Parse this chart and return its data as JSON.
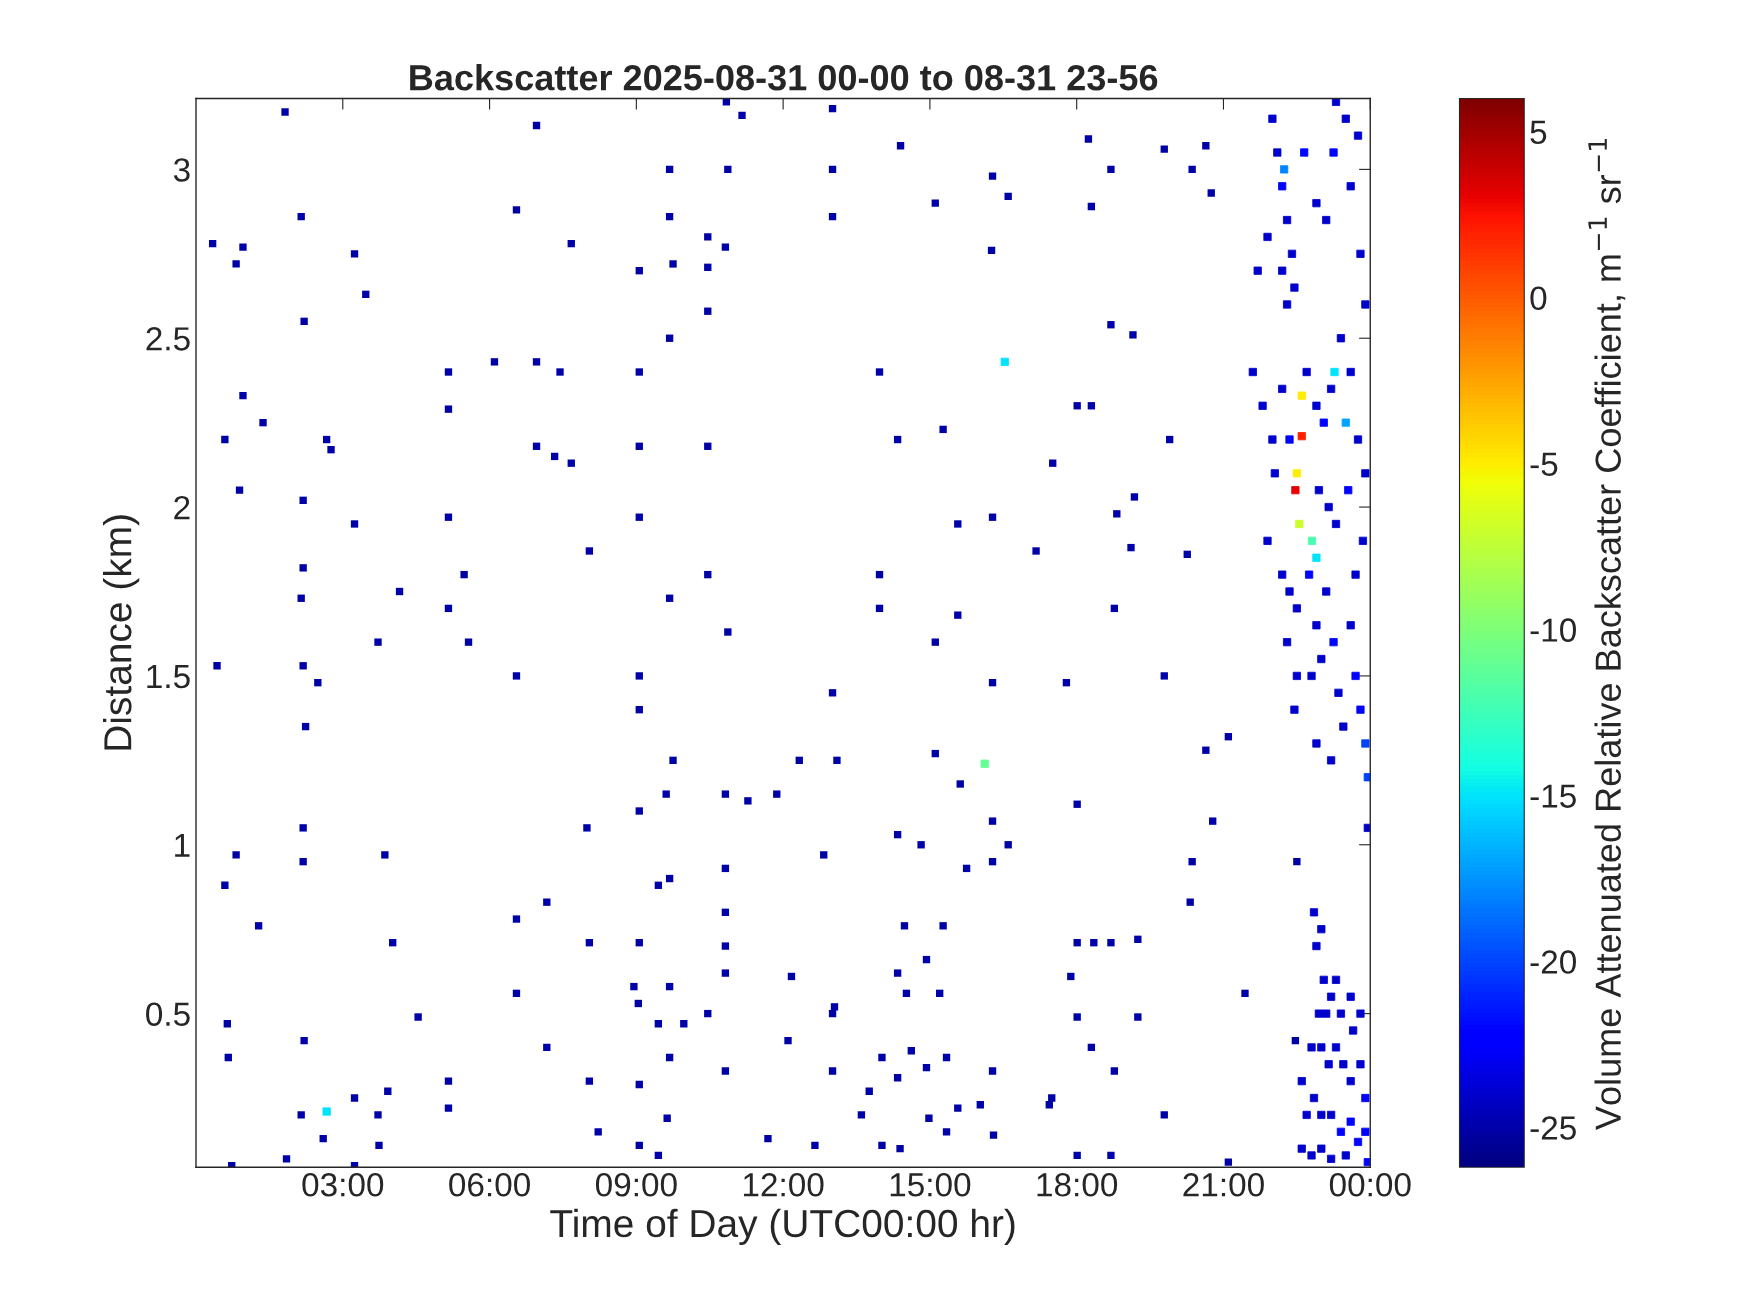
{
  "chart_data": {
    "type": "scatter",
    "title": "Backscatter 2025-08-31 00-00 to 08-31 23-56",
    "xlabel": "Time of Day (UTC00:00 hr)",
    "ylabel": "Distance (km)",
    "clabel": "Volume Attenuated Relative Backscatter Coefficient, m$^{−1}$ sr$^{−1}$",
    "marker": "square",
    "grid": false,
    "legend": false,
    "xlim": [
      0,
      24
    ],
    "xticks": [
      {
        "value": 3,
        "label": "03:00"
      },
      {
        "value": 6,
        "label": "06:00"
      },
      {
        "value": 9,
        "label": "09:00"
      },
      {
        "value": 12,
        "label": "12:00"
      },
      {
        "value": 15,
        "label": "15:00"
      },
      {
        "value": 18,
        "label": "18:00"
      },
      {
        "value": 21,
        "label": "21:00"
      },
      {
        "value": 24,
        "label": "00:00"
      }
    ],
    "ylim": [
      0.045,
      3.21
    ],
    "yticks": [
      0.5,
      1,
      1.5,
      2,
      2.5,
      3
    ],
    "clim": [
      -26.2,
      6
    ],
    "cticks": [
      -25,
      -20,
      -15,
      -10,
      -5,
      0,
      5
    ],
    "series": [
      {
        "x": [
          1.82,
          2.15,
          0.34,
          0.82,
          0.96,
          3.24,
          3.47,
          2.21,
          6.55,
          6.96,
          7.67,
          9.68,
          9.68,
          10.87,
          10.84,
          11.16,
          13.01,
          13.01,
          13.01,
          14.4,
          15.11,
          16.28,
          16.6,
          16.26,
          18.24,
          18.3,
          18.7,
          19.79,
          20.36,
          20.64,
          20.75,
          10.46,
          10.46,
          9.75,
          9.06,
          10.82,
          10.46,
          9.68,
          5.16,
          6.1,
          6.96,
          7.44,
          9.06,
          5.16,
          0.96,
          0.59,
          1.37,
          2.67,
          2.76,
          6.96,
          7.33,
          7.67,
          9.06,
          10.46,
          13.97,
          14.34,
          15.27,
          17.51,
          18.01,
          18.3,
          18.7,
          19.15,
          19.9,
          19.18,
          18.82,
          0.89,
          2.19,
          3.24,
          5.16,
          9.06,
          15.57,
          16.28,
          17.17,
          19.11,
          20.26,
          8.04,
          2.19,
          2.15,
          4.16,
          5.48,
          5.16,
          5.57,
          3.72,
          6.55,
          9.68,
          10.46,
          10.87,
          13.97,
          13.97,
          15.57,
          15.11,
          18.77,
          17.79,
          19.79,
          0.43,
          2.19,
          2.49,
          2.24,
          9.06,
          9.06,
          13.01,
          16.28,
          9.75,
          15.11,
          15.62,
          12.33,
          13.1,
          11.87,
          11.28,
          10.82,
          9.61,
          9.06,
          18.01,
          21.1,
          20.64,
          2.19,
          7.99,
          14.34,
          14.82,
          16.28,
          16.6,
          20.78,
          0.82,
          2.19,
          3.86,
          10.82,
          12.83,
          16.28,
          15.75,
          20.36,
          22.5,
          0.59,
          9.68,
          9.45,
          20.32,
          7.17,
          1.28,
          6.55,
          10.82,
          10.82,
          8.04,
          4.02,
          9.06,
          14.48,
          15.27,
          18.01,
          18.7,
          19.25,
          18.35,
          14.93,
          14.34,
          10.82,
          12.17,
          9.68,
          6.55,
          8.95,
          17.88,
          15.2,
          14.52,
          21.44,
          9.04,
          10.46,
          13.05,
          13.01,
          4.54,
          0.64,
          9.45,
          9.97,
          18.01,
          19.25,
          2.21,
          12.1,
          14.62,
          7.17,
          9.68,
          10.82,
          13.01,
          14.02,
          15.34,
          14.93,
          16.28,
          18.3,
          18.77,
          22.47,
          0.66,
          5.16,
          9.06,
          8.04,
          13.76,
          14.34,
          3.92,
          2.15,
          3.24,
          3.72,
          5.16,
          17.49,
          17.44,
          19.79,
          15.57,
          16.03,
          14.98,
          13.6,
          9.63,
          8.22,
          2.6,
          11.69,
          12.65,
          9.06,
          14.02,
          14.39,
          15.34,
          16.3,
          3.74,
          1.85,
          9.45,
          18.01,
          18.7,
          21.1,
          0.73,
          3.24
        ],
        "values": [
          3.17,
          2.86,
          2.78,
          2.72,
          2.77,
          2.75,
          2.63,
          2.55,
          2.88,
          3.13,
          2.78,
          3.0,
          2.86,
          3.0,
          3.2,
          3.16,
          3.18,
          3.0,
          2.86,
          3.07,
          2.9,
          2.98,
          2.92,
          2.76,
          3.09,
          2.89,
          3.0,
          3.06,
          3.0,
          3.07,
          2.93,
          2.8,
          2.71,
          2.72,
          2.7,
          2.77,
          2.58,
          2.5,
          2.4,
          2.43,
          2.43,
          2.4,
          2.4,
          2.29,
          2.33,
          2.2,
          2.25,
          2.2,
          2.17,
          2.18,
          2.15,
          2.13,
          2.18,
          2.18,
          2.4,
          2.2,
          2.23,
          2.13,
          2.3,
          2.3,
          2.54,
          2.51,
          2.2,
          2.03,
          1.98,
          2.05,
          2.02,
          1.95,
          1.97,
          1.97,
          1.95,
          1.97,
          1.87,
          1.88,
          1.86,
          1.87,
          1.82,
          1.73,
          1.75,
          1.8,
          1.7,
          1.6,
          1.6,
          1.5,
          1.73,
          1.8,
          1.63,
          1.8,
          1.7,
          1.68,
          1.6,
          1.7,
          1.48,
          1.5,
          1.53,
          1.53,
          1.48,
          1.35,
          1.4,
          1.5,
          1.45,
          1.48,
          1.25,
          1.27,
          1.18,
          1.25,
          1.25,
          1.15,
          1.13,
          1.15,
          1.15,
          1.1,
          1.12,
          1.32,
          1.28,
          1.05,
          1.05,
          1.03,
          1.0,
          1.07,
          1.0,
          1.07,
          0.97,
          0.95,
          0.97,
          0.93,
          0.97,
          0.95,
          0.93,
          0.95,
          0.95,
          0.88,
          0.9,
          0.88,
          0.83,
          0.83,
          0.76,
          0.78,
          0.8,
          0.7,
          0.71,
          0.71,
          0.71,
          0.76,
          0.76,
          0.71,
          0.71,
          0.72,
          0.71,
          0.66,
          0.62,
          0.62,
          0.61,
          0.58,
          0.56,
          0.58,
          0.61,
          0.56,
          0.56,
          0.56,
          0.53,
          0.5,
          0.52,
          0.5,
          0.49,
          0.47,
          0.47,
          0.47,
          0.49,
          0.49,
          0.42,
          0.42,
          0.39,
          0.4,
          0.37,
          0.33,
          0.33,
          0.37,
          0.37,
          0.34,
          0.33,
          0.4,
          0.33,
          0.42,
          0.37,
          0.3,
          0.29,
          0.3,
          0.27,
          0.31,
          0.27,
          0.2,
          0.25,
          0.2,
          0.22,
          0.25,
          0.23,
          0.2,
          0.22,
          0.23,
          0.19,
          0.2,
          0.19,
          0.15,
          0.13,
          0.13,
          0.11,
          0.11,
          0.11,
          0.1,
          0.15,
          0.14,
          0.11,
          0.07,
          0.08,
          0.08,
          0.08,
          0.06,
          0.05,
          0.05
        ],
        "cvalues": [
          -25,
          -25,
          -25,
          -25,
          -25,
          -25,
          -25,
          -25,
          -25,
          -25,
          -25,
          -25,
          -25,
          -25,
          -25,
          -25,
          -25,
          -25,
          -25,
          -25,
          -25,
          -25,
          -25,
          -25,
          -25,
          -25,
          -25,
          -25,
          -25,
          -25,
          -25,
          -25,
          -25,
          -25,
          -25,
          -25,
          -25,
          -25,
          -25,
          -25,
          -25,
          -25,
          -25,
          -25,
          -25,
          -25,
          -25,
          -25,
          -25,
          -25,
          -25,
          -25,
          -25,
          -25,
          -25,
          -25,
          -25,
          -25,
          -25,
          -25,
          -25,
          -25,
          -25,
          -25,
          -25,
          -25,
          -25,
          -25,
          -25,
          -25,
          -25,
          -25,
          -25,
          -25,
          -25,
          -25,
          -25,
          -25,
          -25,
          -25,
          -25,
          -25,
          -25,
          -25,
          -25,
          -25,
          -25,
          -25,
          -25,
          -25,
          -25,
          -25,
          -25,
          -25,
          -25,
          -25,
          -25,
          -25,
          -25,
          -25,
          -25,
          -25,
          -25,
          -25,
          -25,
          -25,
          -25,
          -25,
          -25,
          -25,
          -25,
          -25,
          -25,
          -25,
          -25,
          -25,
          -25,
          -25,
          -25,
          -25,
          -25,
          -25,
          -25,
          -25,
          -25,
          -25,
          -25,
          -25,
          -25,
          -25,
          -25,
          -25,
          -25,
          -25,
          -25,
          -25,
          -25,
          -25,
          -25,
          -25,
          -25,
          -25,
          -25,
          -25,
          -25,
          -25,
          -25,
          -25,
          -25,
          -25,
          -25,
          -25,
          -25,
          -25,
          -25,
          -25,
          -25,
          -25,
          -25,
          -25,
          -25,
          -25,
          -25,
          -25,
          -25,
          -25,
          -25,
          -25,
          -25,
          -25,
          -25,
          -25,
          -25,
          -25,
          -25,
          -25,
          -25,
          -25,
          -25,
          -25,
          -25,
          -25,
          -25,
          -25,
          -25,
          -25,
          -25,
          -25,
          -25,
          -25,
          -25,
          -25,
          -25,
          -25,
          -25,
          -25,
          -25,
          -25,
          -25,
          -25,
          -25,
          -25,
          -25,
          -25,
          -25,
          -25,
          -25,
          -25,
          -25,
          -25,
          -25,
          -25,
          -25,
          -25,
          -25,
          -25,
          -25,
          -25,
          -25,
          -25
        ]
      },
      {
        "x": [
          22.0,
          22.1,
          22.2,
          22.3,
          22.4,
          22.2,
          22.45,
          22.3,
          21.7,
          21.9,
          22.65,
          22.9,
          23.1,
          23.3,
          23.25,
          23.5,
          23.6,
          23.75,
          23.8,
          23.9,
          21.6,
          21.8,
          22.0,
          22.2,
          22.05,
          22.35,
          22.7,
          22.9,
          23.05,
          23.2,
          23.4,
          23.6,
          23.75,
          23.9,
          23.55,
          22.5,
          22.47,
          22.6,
          22.6,
          22.55,
          23.27,
          23.5,
          22.81,
          22.9,
          22.24,
          21.9,
          22.2,
          22.35,
          22.5,
          22.3,
          22.5,
          22.45,
          22.75,
          22.9,
          23.0,
          23.1,
          23.25,
          23.35,
          23.45,
          23.6,
          23.7,
          23.8,
          23.9,
          23.95,
          23.85,
          23.7,
          23.3,
          23.15,
          22.95,
          22.8,
          22.9,
          23.2,
          23.95,
          22.85,
          22.9,
          23.0,
          23.05,
          22.95,
          23.1,
          23.2,
          23.3,
          23.4,
          23.6,
          22.8,
          23.0,
          23.15,
          23.3,
          23.45,
          23.6,
          23.8,
          23.9,
          22.6,
          22.7,
          22.85,
          23.0,
          23.2,
          23.4,
          23.6,
          23.75,
          23.9,
          22.6,
          22.8,
          23.0,
          23.2,
          23.5,
          23.95,
          23.65,
          23.8,
          16.53,
          16.12,
          2.67
        ],
        "values": [
          3.15,
          3.05,
          2.95,
          2.85,
          2.75,
          2.7,
          2.65,
          2.6,
          2.7,
          2.8,
          3.05,
          2.9,
          2.85,
          3.2,
          3.05,
          3.15,
          2.95,
          3.1,
          2.75,
          2.6,
          2.4,
          2.3,
          2.2,
          2.35,
          2.1,
          2.2,
          2.4,
          2.3,
          2.25,
          2.35,
          2.5,
          2.4,
          2.2,
          2.1,
          2.05,
          2.1,
          2.05,
          2.21,
          2.33,
          1.95,
          2.4,
          2.25,
          1.9,
          1.85,
          3.0,
          1.9,
          1.8,
          1.75,
          1.7,
          1.6,
          1.5,
          1.4,
          1.8,
          1.65,
          1.55,
          1.75,
          1.6,
          1.45,
          1.35,
          1.65,
          1.5,
          1.4,
          1.3,
          1.2,
          1.9,
          1.8,
          1.95,
          2.0,
          2.05,
          1.5,
          1.3,
          1.25,
          1.05,
          0.8,
          0.7,
          0.75,
          0.6,
          0.5,
          0.5,
          0.55,
          0.6,
          0.5,
          0.55,
          0.4,
          0.4,
          0.35,
          0.4,
          0.35,
          0.3,
          0.35,
          0.25,
          0.3,
          0.2,
          0.25,
          0.2,
          0.2,
          0.15,
          0.18,
          0.12,
          0.15,
          0.1,
          0.08,
          0.1,
          0.07,
          0.08,
          0.06,
          0.45,
          0.5,
          2.43,
          1.24,
          0.21
        ],
        "cvalues": [
          -24,
          -24,
          -22,
          -24,
          -24,
          -24,
          -24,
          -24,
          -24,
          -24,
          -22,
          -24,
          -24,
          -24,
          -22,
          -24,
          -24,
          -24,
          -24,
          -24,
          -24,
          -24,
          -24,
          -24,
          -24,
          -22,
          -24,
          -24,
          -22,
          -24,
          -24,
          -24,
          -24,
          -24,
          -22,
          -5,
          3,
          2,
          -5,
          -7,
          -15,
          -17,
          -12,
          -15,
          -18,
          -24,
          -24,
          -24,
          -24,
          -24,
          -24,
          -24,
          -22,
          -24,
          -24,
          -24,
          -22,
          -24,
          -24,
          -24,
          -22,
          -22,
          -20,
          -20,
          -24,
          -24,
          -24,
          -24,
          -24,
          -24,
          -24,
          -24,
          -24,
          -24,
          -24,
          -24,
          -24,
          -24,
          -24,
          -24,
          -24,
          -24,
          -24,
          -24,
          -24,
          -24,
          -24,
          -24,
          -24,
          -24,
          -22,
          -24,
          -24,
          -24,
          -24,
          -24,
          -22,
          -22,
          -22,
          -22,
          -24,
          -24,
          -24,
          -24,
          -24,
          -22,
          -24,
          -24,
          -15,
          -11,
          -15
        ],
        "colors": [
          "#0000cf",
          "#0000cf",
          "#0005ff",
          "#0000cf",
          "#0000cf",
          "#0000cf",
          "#0000cf",
          "#0000cf",
          "#0000cf",
          "#0000cf",
          "#0005ff",
          "#0000cf",
          "#0000cf",
          "#0000cf",
          "#0005ff",
          "#0000cf",
          "#0000cf",
          "#0000cf",
          "#0000cf",
          "#0000cf",
          "#0000cf",
          "#0000cf",
          "#0000cf",
          "#0000cf",
          "#0000cf",
          "#0005ff",
          "#0000cf",
          "#0000cf",
          "#0005ff",
          "#0000cf",
          "#0000cf",
          "#0000cf",
          "#0000cf",
          "#0000cf",
          "#0005ff",
          "#fded00",
          "#eb0300",
          "#ff2100",
          "#fded00",
          "#caff2c",
          "#00e3ff",
          "#00a3ff",
          "#4bffac",
          "#00e3ff",
          "#0085ff",
          "#0000cf",
          "#0000cf",
          "#0000cf",
          "#0000cf",
          "#0000cf",
          "#0000cf",
          "#0000cf",
          "#0005ff",
          "#0000cf",
          "#0000cf",
          "#0000cf",
          "#0005ff",
          "#0000cf",
          "#0000cf",
          "#0000cf",
          "#0005ff",
          "#0005ff",
          "#0045ff",
          "#0045ff",
          "#0000cf",
          "#0000cf",
          "#0000cf",
          "#0000cf",
          "#0000cf",
          "#0000cf",
          "#0000cf",
          "#0000cf",
          "#0000cf",
          "#0000cf",
          "#0000cf",
          "#0000cf",
          "#0000cf",
          "#0000cf",
          "#0000cf",
          "#0000cf",
          "#0000cf",
          "#0000cf",
          "#0000cf",
          "#0000cf",
          "#0000cf",
          "#0000cf",
          "#0000cf",
          "#0000cf",
          "#0000cf",
          "#0000cf",
          "#0005ff",
          "#0000cf",
          "#0000cf",
          "#0000cf",
          "#0000cf",
          "#0000cf",
          "#0005ff",
          "#0005ff",
          "#0005ff",
          "#0005ff",
          "#0000cf",
          "#0000cf",
          "#0000cf",
          "#0000cf",
          "#0000cf",
          "#0005ff",
          "#0000cf",
          "#0000cf",
          "#00e3ff",
          "#64ff91",
          "#00e3ff"
        ]
      }
    ]
  }
}
